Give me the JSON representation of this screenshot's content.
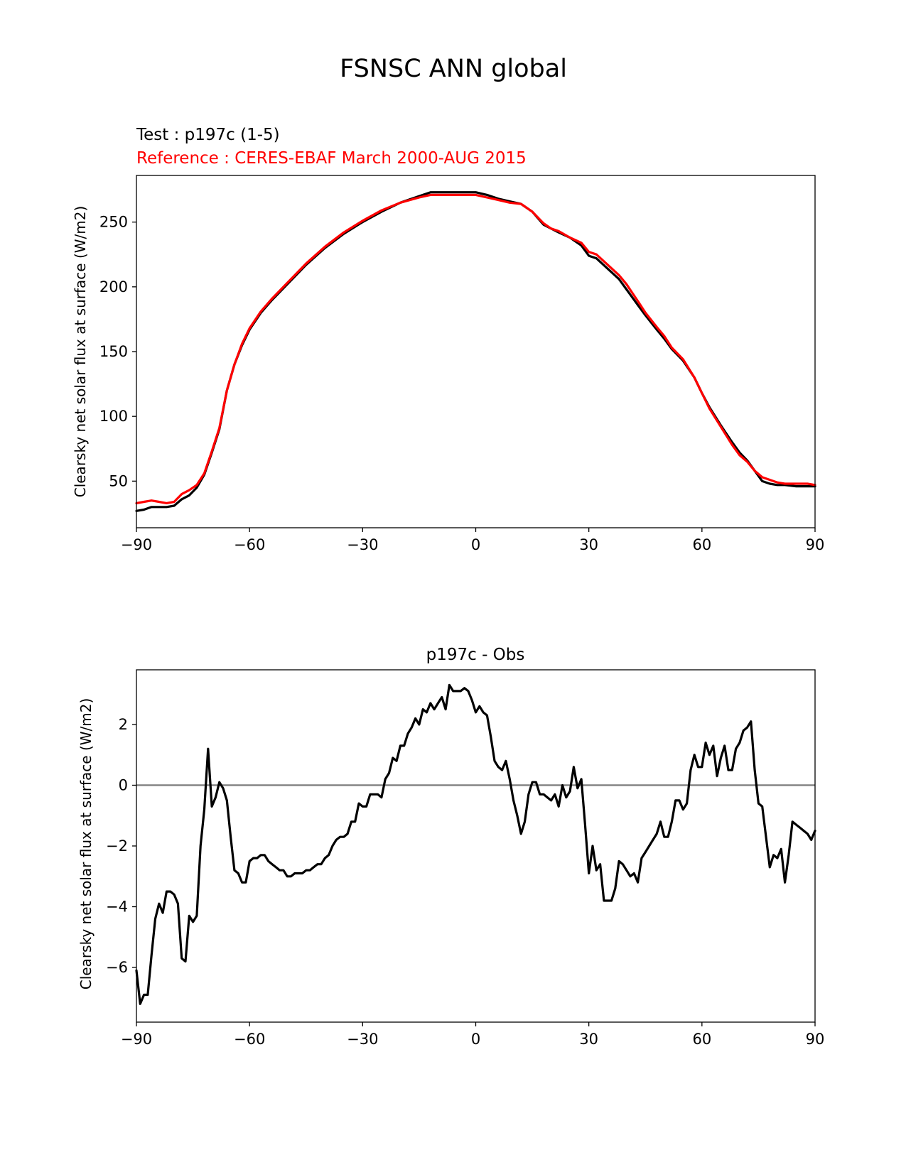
{
  "figure": {
    "title": "FSNSC ANN global"
  },
  "chart_data": [
    {
      "type": "line",
      "title_test": "Test : p197c (1-5)",
      "title_reference": "Reference : CERES-EBAF March 2000-AUG 2015",
      "xlabel": "",
      "ylabel": "Clearsky net solar flux at surface (W/m2)",
      "xlim": [
        -90,
        90
      ],
      "ylim": [
        14,
        286
      ],
      "xticks": [
        -90,
        -60,
        -30,
        0,
        30,
        60,
        90
      ],
      "xtick_labels": [
        "−90",
        "−60",
        "−30",
        "0",
        "30",
        "60",
        "90"
      ],
      "yticks": [
        50,
        100,
        150,
        200,
        250
      ],
      "ytick_labels": [
        "50",
        "100",
        "150",
        "200",
        "250"
      ],
      "grid": false,
      "legend": "none",
      "series": [
        {
          "color": "#000000",
          "x": [
            -90,
            -88,
            -86,
            -84,
            -82,
            -80,
            -78,
            -76,
            -74,
            -72,
            -70,
            -68,
            -66,
            -64,
            -62,
            -60,
            -57,
            -54,
            -50,
            -45,
            -40,
            -35,
            -30,
            -25,
            -20,
            -15,
            -12,
            -9,
            -6,
            -3,
            0,
            3,
            6,
            9,
            12,
            15,
            18,
            20,
            22,
            25,
            28,
            30,
            32,
            35,
            38,
            40,
            43,
            45,
            48,
            50,
            52,
            55,
            58,
            60,
            62,
            65,
            68,
            70,
            72,
            74,
            76,
            78,
            80,
            82,
            85,
            88,
            90
          ],
          "y": [
            27,
            28,
            30,
            30,
            30,
            31,
            36,
            39,
            45,
            55,
            72,
            90,
            120,
            140,
            155,
            167,
            180,
            190,
            202,
            217,
            230,
            241,
            250,
            258,
            265,
            270,
            273,
            273,
            273,
            273,
            273,
            271,
            268,
            266,
            264,
            258,
            248,
            245,
            242,
            238,
            232,
            224,
            222,
            214,
            206,
            198,
            186,
            178,
            167,
            160,
            152,
            143,
            130,
            118,
            107,
            93,
            80,
            72,
            66,
            58,
            50,
            48,
            47,
            47,
            46,
            46,
            46
          ]
        },
        {
          "color": "#ff0000",
          "x": [
            -90,
            -88,
            -86,
            -84,
            -82,
            -80,
            -78,
            -76,
            -74,
            -72,
            -70,
            -68,
            -66,
            -64,
            -62,
            -60,
            -57,
            -54,
            -50,
            -45,
            -40,
            -35,
            -30,
            -25,
            -20,
            -15,
            -12,
            -9,
            -6,
            -3,
            0,
            3,
            6,
            9,
            12,
            15,
            18,
            20,
            22,
            25,
            28,
            30,
            32,
            35,
            38,
            40,
            43,
            45,
            48,
            50,
            52,
            55,
            58,
            60,
            62,
            65,
            68,
            70,
            72,
            74,
            76,
            78,
            80,
            82,
            85,
            88,
            90
          ],
          "y": [
            33,
            34,
            35,
            34,
            33,
            34,
            40,
            43,
            47,
            56,
            73,
            91,
            120,
            140,
            156,
            168,
            181,
            191,
            203,
            218,
            231,
            242,
            251,
            259,
            265,
            269,
            271,
            271,
            271,
            271,
            271,
            269,
            267,
            265,
            264,
            258,
            249,
            245,
            243,
            238,
            234,
            227,
            225,
            217,
            209,
            202,
            189,
            180,
            169,
            162,
            153,
            144,
            130,
            118,
            106,
            92,
            78,
            70,
            65,
            58,
            53,
            51,
            49,
            48,
            48,
            48,
            47
          ]
        }
      ]
    },
    {
      "type": "line",
      "title": "p197c - Obs",
      "xlabel": "",
      "ylabel": "Clearsky net solar flux at surface (W/m2)",
      "xlim": [
        -90,
        90
      ],
      "ylim": [
        -7.8,
        3.8
      ],
      "xticks": [
        -90,
        -60,
        -30,
        0,
        30,
        60,
        90
      ],
      "xtick_labels": [
        "−90",
        "−60",
        "−30",
        "0",
        "30",
        "60",
        "90"
      ],
      "yticks": [
        -6,
        -4,
        -2,
        0,
        2
      ],
      "ytick_labels": [
        "−6",
        "−4",
        "−2",
        "0",
        "2"
      ],
      "grid": false,
      "legend": "none",
      "zero_line_color": "#808080",
      "series": [
        {
          "color": "#000000",
          "x": [
            -90,
            -89,
            -88,
            -87,
            -86,
            -85,
            -84,
            -83,
            -82,
            -81,
            -80,
            -79,
            -78,
            -77,
            -76,
            -75,
            -74,
            -73,
            -72,
            -71,
            -70,
            -69,
            -68,
            -67,
            -66,
            -65,
            -64,
            -63,
            -62,
            -61,
            -60,
            -59,
            -58,
            -57,
            -56,
            -55,
            -54,
            -53,
            -52,
            -51,
            -50,
            -49,
            -48,
            -47,
            -46,
            -45,
            -44,
            -43,
            -42,
            -41,
            -40,
            -39,
            -38,
            -37,
            -36,
            -35,
            -34,
            -33,
            -32,
            -31,
            -30,
            -29,
            -28,
            -27,
            -26,
            -25,
            -24,
            -23,
            -22,
            -21,
            -20,
            -19,
            -18,
            -17,
            -16,
            -15,
            -14,
            -13,
            -12,
            -11,
            -10,
            -9,
            -8,
            -7,
            -6,
            -5,
            -4,
            -3,
            -2,
            -1,
            0,
            1,
            2,
            3,
            4,
            5,
            6,
            7,
            8,
            9,
            10,
            11,
            12,
            13,
            14,
            15,
            16,
            17,
            18,
            19,
            20,
            21,
            22,
            23,
            24,
            25,
            26,
            27,
            28,
            29,
            30,
            31,
            32,
            33,
            34,
            35,
            36,
            37,
            38,
            39,
            40,
            41,
            42,
            43,
            44,
            45,
            46,
            47,
            48,
            49,
            50,
            51,
            52,
            53,
            54,
            55,
            56,
            57,
            58,
            59,
            60,
            61,
            62,
            63,
            64,
            65,
            66,
            67,
            68,
            69,
            70,
            71,
            72,
            73,
            74,
            75,
            76,
            77,
            78,
            79,
            80,
            81,
            82,
            83,
            84,
            85,
            86,
            87,
            88,
            89,
            90
          ],
          "y": [
            -6.1,
            -7.2,
            -6.9,
            -6.9,
            -5.6,
            -4.4,
            -3.9,
            -4.2,
            -3.5,
            -3.5,
            -3.6,
            -3.9,
            -5.7,
            -5.8,
            -4.3,
            -4.5,
            -4.3,
            -2.0,
            -0.8,
            1.2,
            -0.7,
            -0.4,
            0.1,
            -0.1,
            -0.5,
            -1.7,
            -2.8,
            -2.9,
            -3.2,
            -3.2,
            -2.5,
            -2.4,
            -2.4,
            -2.3,
            -2.3,
            -2.5,
            -2.6,
            -2.7,
            -2.8,
            -2.8,
            -3.0,
            -3.0,
            -2.9,
            -2.9,
            -2.9,
            -2.8,
            -2.8,
            -2.7,
            -2.6,
            -2.6,
            -2.4,
            -2.3,
            -2.0,
            -1.8,
            -1.7,
            -1.7,
            -1.6,
            -1.2,
            -1.2,
            -0.6,
            -0.7,
            -0.7,
            -0.3,
            -0.3,
            -0.3,
            -0.4,
            0.2,
            0.4,
            0.9,
            0.8,
            1.3,
            1.3,
            1.7,
            1.9,
            2.2,
            2.0,
            2.5,
            2.4,
            2.7,
            2.5,
            2.7,
            2.9,
            2.5,
            3.3,
            3.1,
            3.1,
            3.1,
            3.2,
            3.1,
            2.8,
            2.4,
            2.6,
            2.4,
            2.3,
            1.6,
            0.8,
            0.6,
            0.5,
            0.8,
            0.2,
            -0.5,
            -1.0,
            -1.6,
            -1.2,
            -0.3,
            0.1,
            0.1,
            -0.3,
            -0.3,
            -0.4,
            -0.5,
            -0.3,
            -0.7,
            0.0,
            -0.4,
            -0.2,
            0.6,
            -0.1,
            0.2,
            -1.3,
            -2.9,
            -2.0,
            -2.8,
            -2.6,
            -3.8,
            -3.8,
            -3.8,
            -3.4,
            -2.5,
            -2.6,
            -2.8,
            -3.0,
            -2.9,
            -3.2,
            -2.4,
            -2.2,
            -2.0,
            -1.8,
            -1.6,
            -1.2,
            -1.7,
            -1.7,
            -1.2,
            -0.5,
            -0.5,
            -0.8,
            -0.6,
            0.5,
            1.0,
            0.6,
            0.6,
            1.4,
            1.0,
            1.3,
            0.3,
            0.9,
            1.3,
            0.5,
            0.5,
            1.2,
            1.4,
            1.8,
            1.9,
            2.1,
            0.5,
            -0.6,
            -0.7,
            -1.7,
            -2.7,
            -2.3,
            -2.4,
            -2.1,
            -3.2,
            -2.3,
            -1.2,
            -1.3,
            -1.4,
            -1.5,
            -1.6,
            -1.8,
            -1.5
          ]
        }
      ]
    }
  ]
}
